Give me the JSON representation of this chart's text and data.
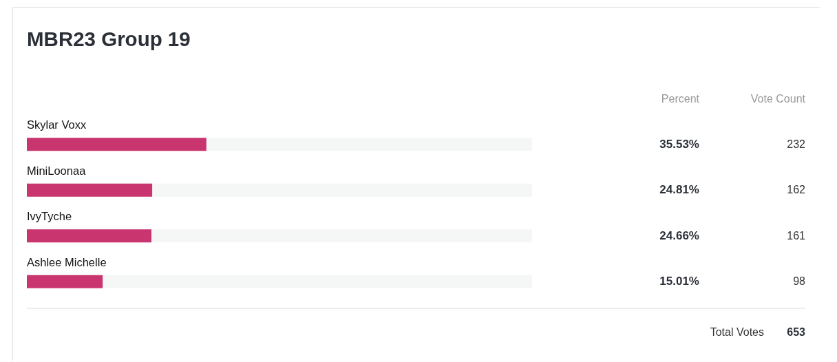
{
  "chart_data": {
    "type": "bar",
    "orientation": "horizontal",
    "title": "MBR23 Group 19",
    "categories": [
      "Skylar Voxx",
      "MiniLoonaa",
      "IvyTyche",
      "Ashlee Michelle"
    ],
    "values": [
      35.53,
      24.81,
      24.66,
      15.01
    ],
    "value_labels": [
      "35.53%",
      "24.81%",
      "24.66%",
      "15.01%"
    ],
    "color": "#c9356e",
    "xlim": [
      0,
      100
    ],
    "tick_labels": false,
    "annotations": [
      "Percent",
      "Vote Count",
      "232",
      "162",
      "161",
      "98",
      "Total Votes",
      "653"
    ]
  }
}
